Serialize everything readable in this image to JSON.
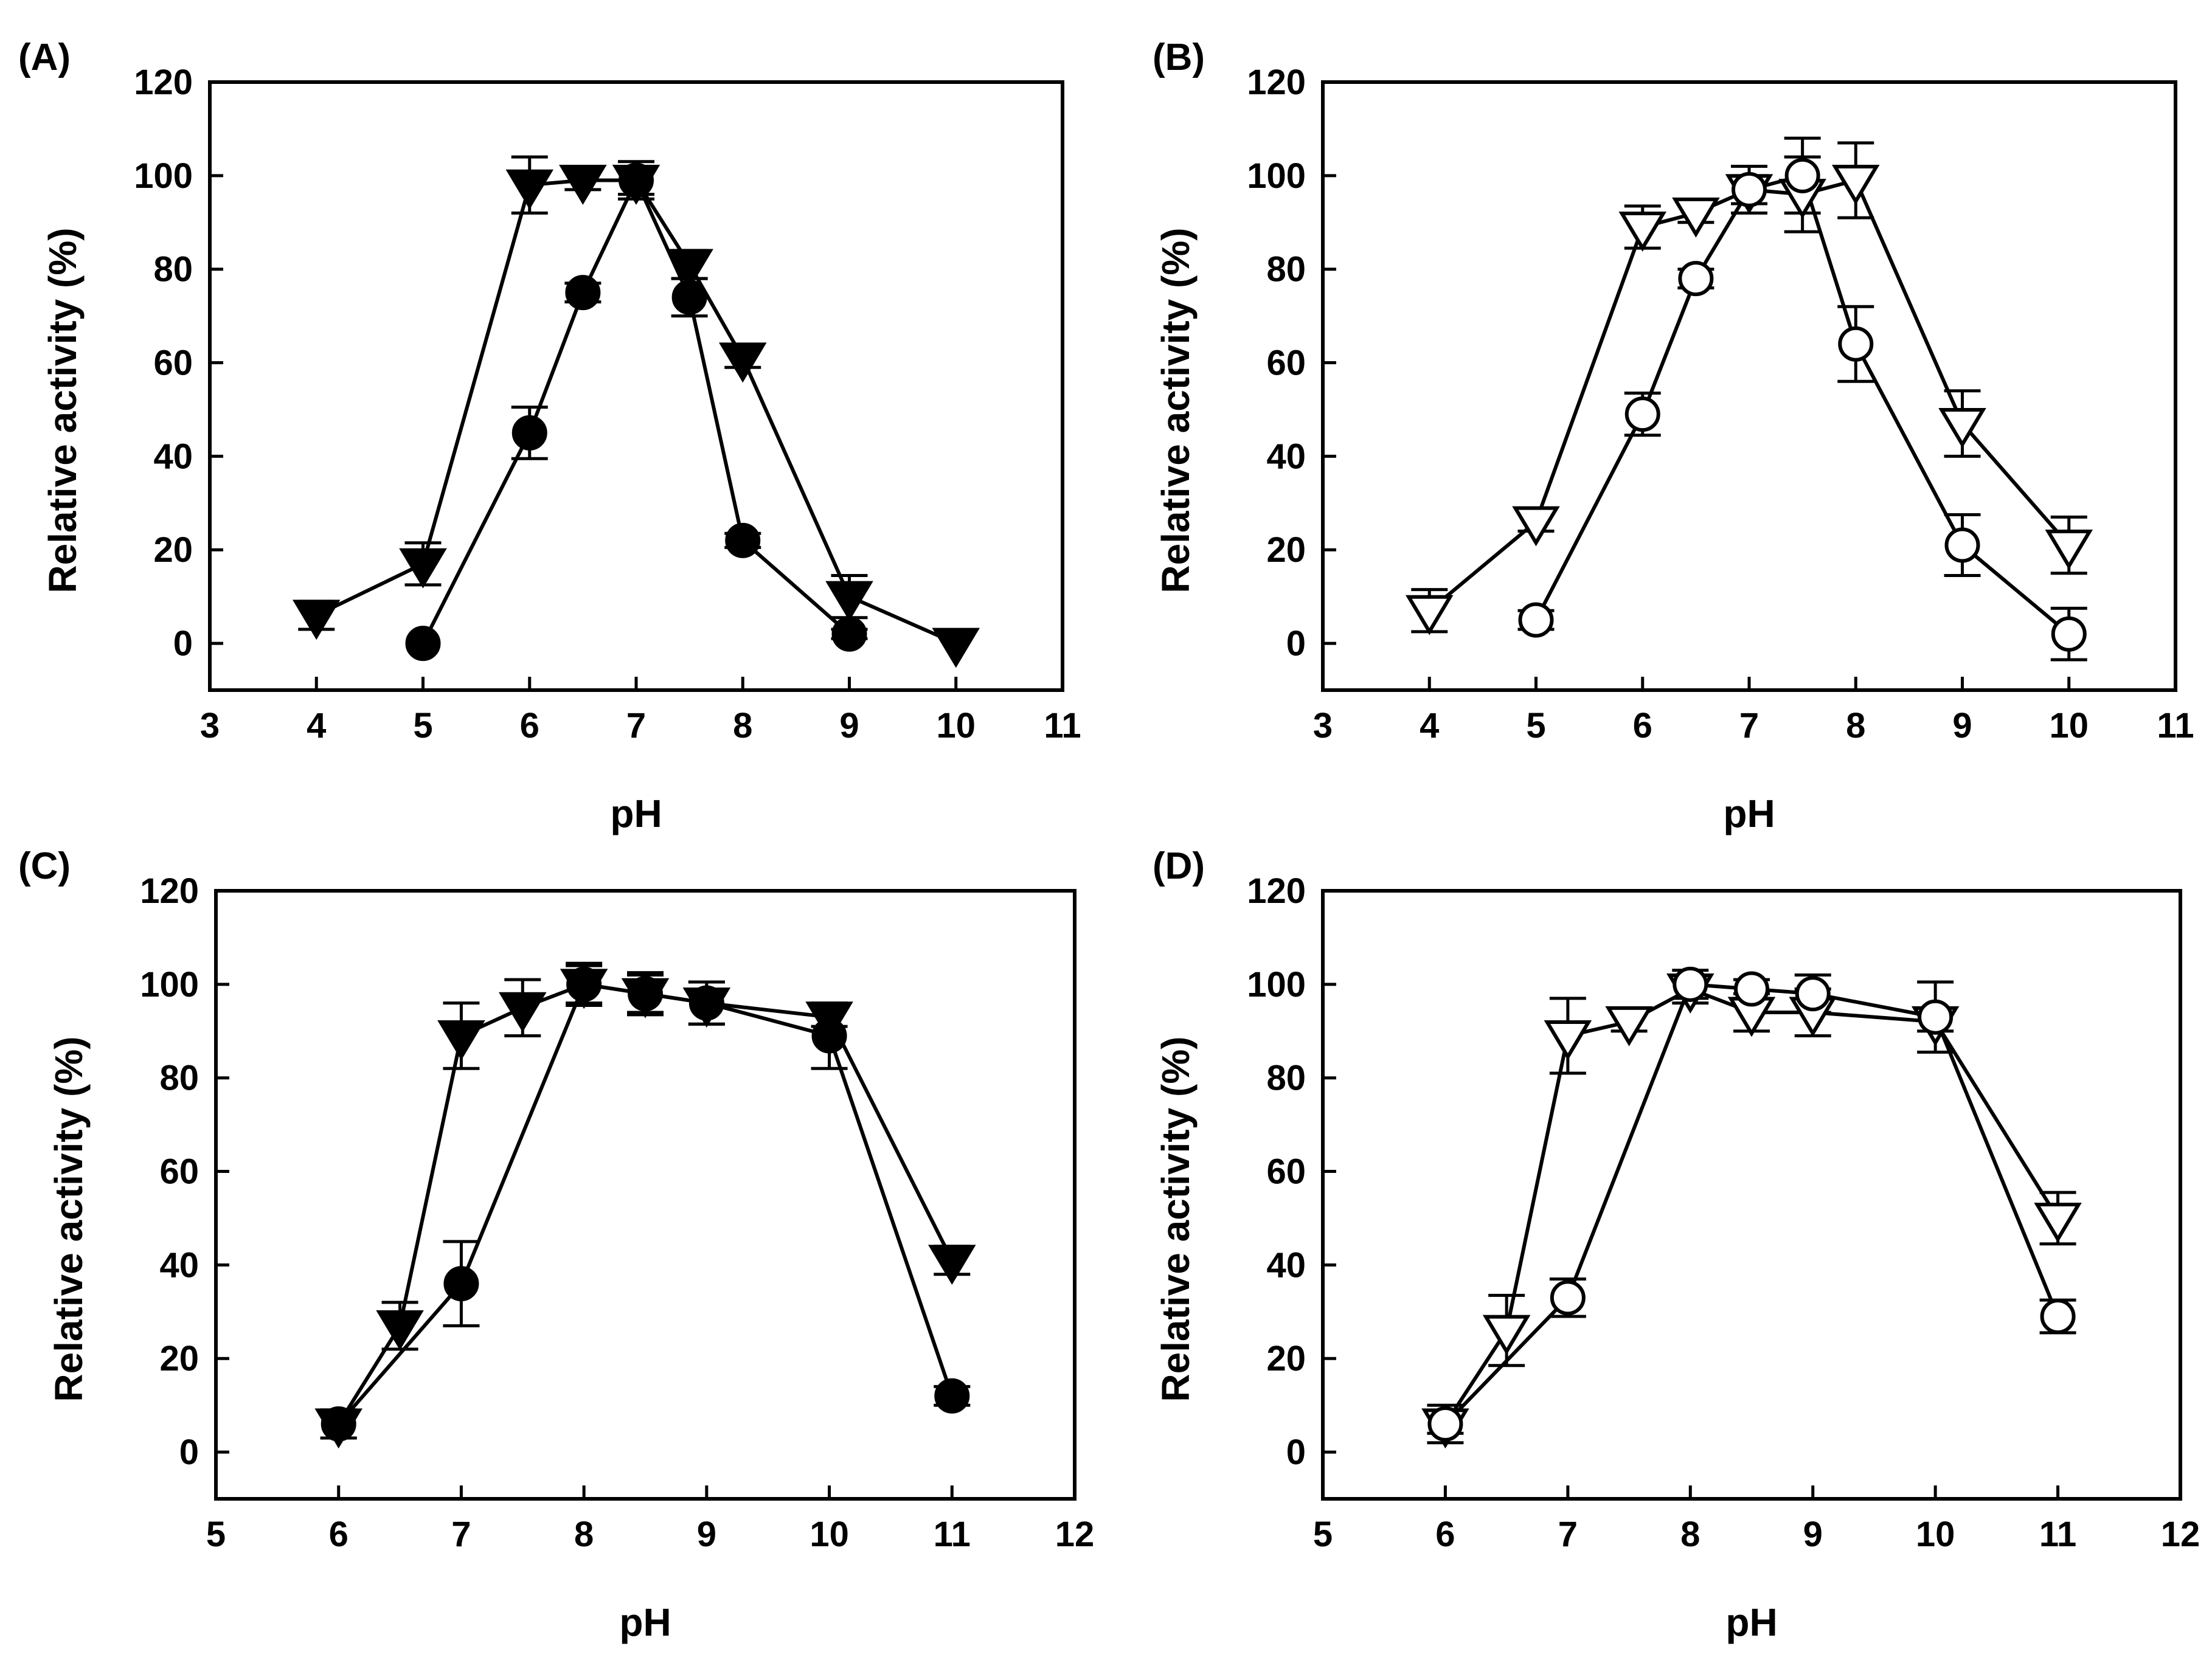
{
  "chart_data": [
    {
      "id": "A",
      "type": "line",
      "title": "(A)",
      "xlabel": "pH",
      "ylabel": "Relative activity (%)",
      "xlim": [
        3,
        11
      ],
      "ylim": [
        -10,
        120
      ],
      "xticks": [
        3,
        4,
        5,
        6,
        7,
        8,
        9,
        10,
        11
      ],
      "yticks": [
        0,
        20,
        40,
        60,
        80,
        100,
        120
      ],
      "grid": false,
      "series": [
        {
          "name": "filled triangle",
          "marker": "triangle-down",
          "fill": "#000000",
          "x": [
            4,
            5,
            6,
            6.5,
            7,
            7.5,
            8,
            9,
            10
          ],
          "y": [
            6,
            17,
            98,
            99,
            99,
            81,
            61,
            10,
            0
          ],
          "err": [
            3,
            4.5,
            6,
            2,
            4,
            3,
            2,
            4.5,
            0
          ]
        },
        {
          "name": "filled circle",
          "marker": "circle",
          "fill": "#000000",
          "x": [
            5,
            6,
            6.5,
            7,
            7.5,
            8,
            9
          ],
          "y": [
            0,
            45,
            75,
            99,
            74,
            22,
            2
          ],
          "err": [
            0,
            5.5,
            2,
            3,
            4,
            1.5,
            1
          ]
        }
      ]
    },
    {
      "id": "B",
      "type": "line",
      "title": "(B)",
      "xlabel": "pH",
      "ylabel": "Relative activity (%)",
      "xlim": [
        3,
        11
      ],
      "ylim": [
        -10,
        120
      ],
      "xticks": [
        3,
        4,
        5,
        6,
        7,
        8,
        9,
        10,
        11
      ],
      "yticks": [
        0,
        20,
        40,
        60,
        80,
        100,
        120
      ],
      "grid": false,
      "series": [
        {
          "name": "open triangle",
          "marker": "triangle-down",
          "fill": "#ffffff",
          "x": [
            4,
            5,
            6,
            6.5,
            7,
            7.5,
            8,
            9,
            10
          ],
          "y": [
            7,
            26,
            89,
            92,
            97,
            96,
            99,
            47,
            21
          ],
          "err": [
            4.5,
            2,
            4.5,
            2,
            5,
            8,
            8,
            7,
            6
          ]
        },
        {
          "name": "open circle",
          "marker": "circle",
          "fill": "#ffffff",
          "x": [
            5,
            6,
            6.5,
            7,
            7.5,
            8,
            9,
            10
          ],
          "y": [
            5,
            49,
            78,
            97,
            100,
            64,
            21,
            2
          ],
          "err": [
            2,
            4.5,
            2,
            3,
            8,
            8,
            6.5,
            5.5
          ]
        }
      ]
    },
    {
      "id": "C",
      "type": "line",
      "title": "(C)",
      "xlabel": "pH",
      "ylabel": "Relative activity (%)",
      "xlim": [
        5,
        12
      ],
      "ylim": [
        -10,
        120
      ],
      "xticks": [
        5,
        6,
        7,
        8,
        9,
        10,
        11,
        12
      ],
      "yticks": [
        0,
        20,
        40,
        60,
        80,
        100,
        120
      ],
      "grid": false,
      "series": [
        {
          "name": "filled triangle",
          "marker": "triangle-down",
          "fill": "#000000",
          "x": [
            6,
            6.5,
            7,
            7.5,
            8,
            8.5,
            9,
            10,
            11
          ],
          "y": [
            6,
            27,
            89,
            95,
            100,
            98,
            96,
            93,
            41
          ],
          "err": [
            3,
            5,
            7,
            6,
            4,
            4,
            4.5,
            2,
            3
          ]
        },
        {
          "name": "filled circle",
          "marker": "circle",
          "fill": "#000000",
          "x": [
            6,
            7,
            8,
            8.5,
            9,
            10,
            11
          ],
          "y": [
            6,
            36,
            100,
            98,
            96,
            89,
            12
          ],
          "err": [
            3,
            9,
            4.5,
            4.5,
            4.5,
            7,
            2
          ]
        }
      ]
    },
    {
      "id": "D",
      "type": "line",
      "title": "(D)",
      "xlabel": "pH",
      "ylabel": "Relative activity (%)",
      "xlim": [
        5,
        12
      ],
      "ylim": [
        -10,
        120
      ],
      "xticks": [
        5,
        6,
        7,
        8,
        9,
        10,
        11,
        12
      ],
      "yticks": [
        0,
        20,
        40,
        60,
        80,
        100,
        120
      ],
      "grid": false,
      "series": [
        {
          "name": "open triangle",
          "marker": "triangle-down",
          "fill": "#ffffff",
          "x": [
            6,
            6.5,
            7,
            7.5,
            8,
            8.5,
            9,
            10,
            11
          ],
          "y": [
            6,
            26,
            89,
            92,
            99,
            94,
            94,
            92,
            50
          ],
          "err": [
            4,
            7.5,
            8,
            2,
            3,
            4,
            5,
            2,
            5.5
          ]
        },
        {
          "name": "open circle",
          "marker": "circle",
          "fill": "#ffffff",
          "x": [
            6,
            7,
            8,
            8.5,
            9,
            10,
            11
          ],
          "y": [
            6,
            33,
            100,
            99,
            98,
            93,
            29
          ],
          "err": [
            2,
            4,
            3,
            2,
            4,
            7.5,
            3.5
          ]
        }
      ]
    }
  ]
}
